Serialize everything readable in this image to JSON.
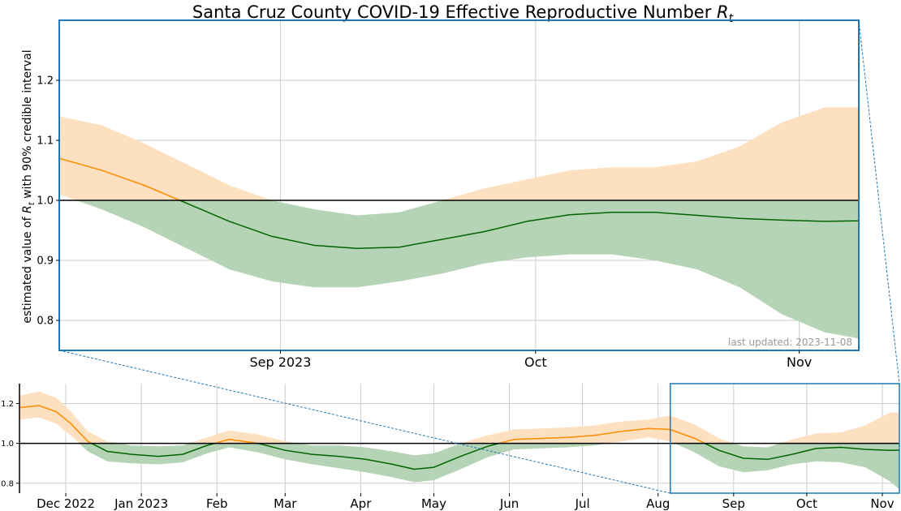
{
  "chart_data": [
    {
      "type": "area",
      "panel": "top",
      "title": "Santa Cruz County COVID-19 Effective Reproductive Number",
      "title_symbol": "R",
      "title_subscript": "t",
      "ylabel_before": "estimated value of",
      "ylabel_symbol": "R",
      "ylabel_subscript": "t",
      "ylabel_after": "with 90% credible interval",
      "annotation": "last updated: 2023-11-08",
      "xlim": [
        "2023-08-06",
        "2023-11-08"
      ],
      "ylim": [
        0.75,
        1.3
      ],
      "x_ticks": [
        {
          "date": "2023-09-01",
          "label": "Sep 2023"
        },
        {
          "date": "2023-10-01",
          "label": "Oct"
        },
        {
          "date": "2023-11-01",
          "label": "Nov"
        }
      ],
      "y_ticks": [
        {
          "value": 0.8,
          "label": "0.8"
        },
        {
          "value": 0.9,
          "label": "0.9"
        },
        {
          "value": 1.0,
          "label": "1.0"
        },
        {
          "value": 1.1,
          "label": "1.1"
        },
        {
          "value": 1.2,
          "label": "1.2"
        }
      ],
      "reference_line": 1.0,
      "grid": true,
      "colors": {
        "above": "#ff8c00",
        "above_band": "#fde0c0",
        "below": "#006400",
        "below_band": "#b5d4b5",
        "frame": "#1f77b4"
      },
      "series": [
        {
          "x": [
            "2023-08-06",
            "2023-08-11",
            "2023-08-16",
            "2023-08-21",
            "2023-08-26",
            "2023-08-31",
            "2023-09-05",
            "2023-09-10",
            "2023-09-15",
            "2023-09-20",
            "2023-09-25",
            "2023-09-30",
            "2023-10-05",
            "2023-10-10",
            "2023-10-15",
            "2023-10-20",
            "2023-10-25",
            "2023-10-30",
            "2023-11-04",
            "2023-11-08"
          ],
          "median": [
            1.07,
            1.05,
            1.025,
            0.995,
            0.965,
            0.94,
            0.925,
            0.92,
            0.922,
            0.935,
            0.948,
            0.965,
            0.976,
            0.98,
            0.98,
            0.975,
            0.97,
            0.967,
            0.965,
            0.966
          ],
          "lower": [
            1.01,
            0.985,
            0.955,
            0.92,
            0.885,
            0.865,
            0.855,
            0.855,
            0.865,
            0.878,
            0.895,
            0.905,
            0.91,
            0.91,
            0.9,
            0.885,
            0.855,
            0.81,
            0.78,
            0.77
          ],
          "upper": [
            1.14,
            1.125,
            1.095,
            1.06,
            1.025,
            1.0,
            0.985,
            0.975,
            0.98,
            1.0,
            1.02,
            1.035,
            1.05,
            1.055,
            1.055,
            1.065,
            1.09,
            1.13,
            1.155,
            1.155
          ]
        }
      ]
    },
    {
      "type": "area",
      "panel": "bottom",
      "xlim": [
        "2022-11-12",
        "2023-11-08"
      ],
      "ylim": [
        0.75,
        1.3
      ],
      "highlight_range": [
        "2023-08-06",
        "2023-11-08"
      ],
      "x_ticks": [
        {
          "date": "2022-12-01",
          "label": "Dec 2022"
        },
        {
          "date": "2023-01-01",
          "label": "Jan 2023"
        },
        {
          "date": "2023-02-01",
          "label": "Feb"
        },
        {
          "date": "2023-03-01",
          "label": "Mar"
        },
        {
          "date": "2023-04-01",
          "label": "Apr"
        },
        {
          "date": "2023-05-01",
          "label": "May"
        },
        {
          "date": "2023-06-01",
          "label": "Jun"
        },
        {
          "date": "2023-07-01",
          "label": "Jul"
        },
        {
          "date": "2023-08-01",
          "label": "Aug"
        },
        {
          "date": "2023-09-01",
          "label": "Sep"
        },
        {
          "date": "2023-10-01",
          "label": "Oct"
        },
        {
          "date": "2023-11-01",
          "label": "Nov"
        }
      ],
      "y_ticks": [
        {
          "value": 0.8,
          "label": "0.8"
        },
        {
          "value": 1.0,
          "label": "1.0"
        },
        {
          "value": 1.2,
          "label": "1.2"
        }
      ],
      "reference_line": 1.0,
      "grid": true,
      "series": [
        {
          "x": [
            "2022-11-12",
            "2022-11-20",
            "2022-11-27",
            "2022-12-03",
            "2022-12-10",
            "2022-12-18",
            "2022-12-28",
            "2023-01-08",
            "2023-01-18",
            "2023-01-28",
            "2023-02-06",
            "2023-02-18",
            "2023-03-01",
            "2023-03-12",
            "2023-03-23",
            "2023-04-03",
            "2023-04-14",
            "2023-04-23",
            "2023-05-01",
            "2023-05-12",
            "2023-05-23",
            "2023-06-03",
            "2023-06-14",
            "2023-06-25",
            "2023-07-06",
            "2023-07-17",
            "2023-07-28",
            "2023-08-06",
            "2023-08-16",
            "2023-08-26",
            "2023-09-05",
            "2023-09-15",
            "2023-09-25",
            "2023-10-05",
            "2023-10-15",
            "2023-10-25",
            "2023-11-04",
            "2023-11-08"
          ],
          "median": [
            1.18,
            1.19,
            1.16,
            1.1,
            1.01,
            0.96,
            0.945,
            0.935,
            0.945,
            0.99,
            1.02,
            1.0,
            0.965,
            0.945,
            0.935,
            0.92,
            0.895,
            0.87,
            0.88,
            0.935,
            0.985,
            1.02,
            1.025,
            1.03,
            1.04,
            1.06,
            1.075,
            1.07,
            1.025,
            0.965,
            0.925,
            0.92,
            0.945,
            0.975,
            0.98,
            0.97,
            0.965,
            0.966
          ],
          "lower": [
            1.12,
            1.13,
            1.1,
            1.04,
            0.96,
            0.91,
            0.9,
            0.895,
            0.905,
            0.95,
            0.98,
            0.955,
            0.92,
            0.895,
            0.875,
            0.855,
            0.83,
            0.805,
            0.815,
            0.87,
            0.93,
            0.97,
            0.975,
            0.98,
            0.99,
            1.01,
            1.03,
            1.01,
            0.955,
            0.885,
            0.855,
            0.865,
            0.895,
            0.91,
            0.905,
            0.88,
            0.81,
            0.77
          ],
          "upper": [
            1.24,
            1.26,
            1.23,
            1.16,
            1.06,
            1.01,
            0.99,
            0.985,
            0.99,
            1.03,
            1.065,
            1.045,
            1.01,
            0.99,
            0.99,
            0.98,
            0.96,
            0.94,
            0.95,
            1.0,
            1.04,
            1.07,
            1.075,
            1.08,
            1.09,
            1.11,
            1.12,
            1.14,
            1.095,
            1.025,
            0.985,
            0.98,
            1.02,
            1.05,
            1.055,
            1.09,
            1.155,
            1.155
          ]
        }
      ]
    }
  ]
}
